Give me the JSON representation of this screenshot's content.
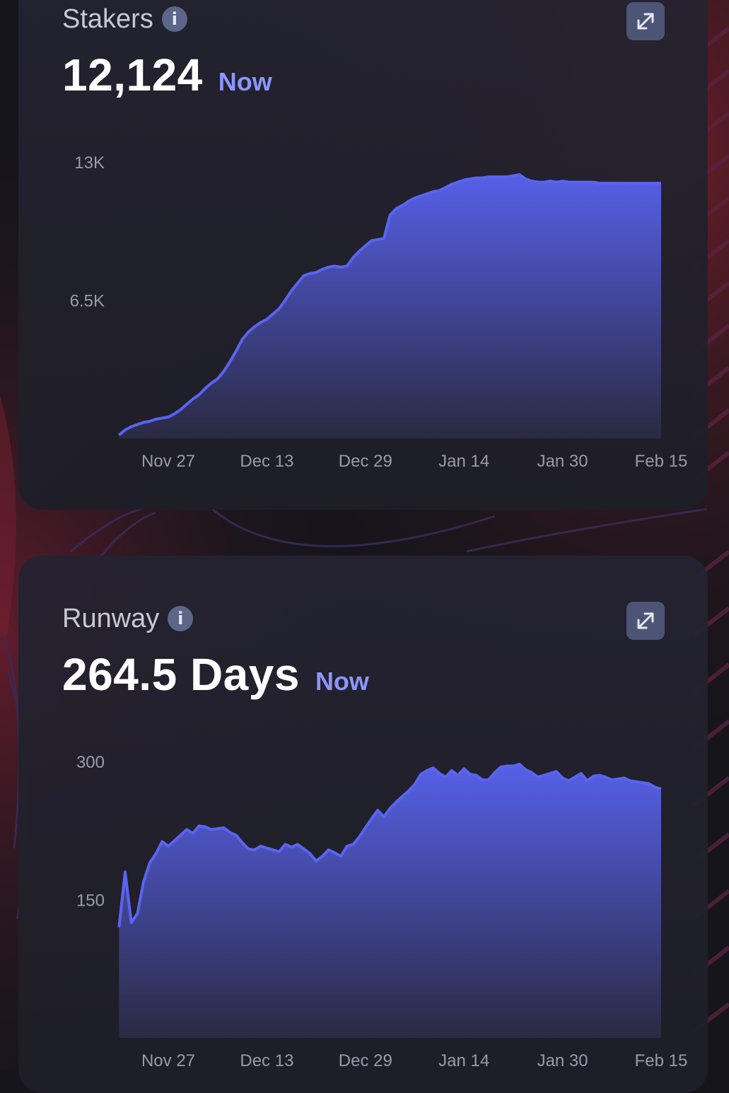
{
  "cards": [
    {
      "title": "Stakers",
      "value": "12,124",
      "now_label": "Now"
    },
    {
      "title": "Runway",
      "value": "264.5 Days",
      "now_label": "Now"
    }
  ],
  "colors": {
    "accent": "#8b95ff",
    "line": "#5a64f0",
    "area_top": "#5660e8",
    "area_bottom": "#2a2a42",
    "card_bg": "#22222e",
    "icon_bg": "#5c6688"
  },
  "icons": {
    "info": "info-icon",
    "expand": "expand-diagonal-icon"
  },
  "chart_data": [
    {
      "type": "area",
      "title": "Stakers",
      "xlabel": "",
      "ylabel": "",
      "x_ticks": [
        "Nov 27",
        "Dec 13",
        "Dec 29",
        "Jan 14",
        "Jan 30",
        "Feb 15"
      ],
      "x_tick_days": [
        0,
        16,
        32,
        48,
        64,
        80
      ],
      "y_ticks": [
        {
          "value": 13000,
          "label": "13K"
        },
        {
          "value": 6500,
          "label": "6.5K"
        }
      ],
      "ylim": [
        0,
        13000
      ],
      "grid": false,
      "series": [
        {
          "x_day": [
            -8,
            -7,
            -6,
            -5,
            -4,
            -3,
            -2,
            -1,
            0,
            1,
            2,
            3,
            4,
            5,
            6,
            7,
            8,
            9,
            10,
            11,
            12,
            13,
            14,
            15,
            16,
            17,
            18,
            19,
            20,
            21,
            22,
            23,
            24,
            25,
            26,
            27,
            28,
            29,
            30,
            31,
            32,
            33,
            34,
            35,
            36,
            37,
            38,
            39,
            40,
            41,
            42,
            43,
            44,
            45,
            46,
            47,
            48,
            49,
            50,
            51,
            52,
            53,
            54,
            55,
            56,
            57,
            58,
            59,
            60,
            61,
            62,
            63,
            64,
            65,
            66,
            67,
            68,
            69,
            70,
            71,
            72,
            73,
            74,
            75,
            76,
            77,
            78,
            79,
            80
          ],
          "values": [
            150,
            400,
            550,
            650,
            750,
            800,
            900,
            950,
            1000,
            1150,
            1350,
            1600,
            1850,
            2050,
            2350,
            2600,
            2800,
            3150,
            3600,
            4100,
            4650,
            5000,
            5250,
            5450,
            5600,
            5850,
            6100,
            6500,
            6950,
            7300,
            7650,
            7750,
            7800,
            7950,
            8050,
            8100,
            8050,
            8100,
            8500,
            8800,
            9050,
            9300,
            9350,
            9400,
            10500,
            10800,
            10950,
            11150,
            11300,
            11400,
            11500,
            11600,
            11650,
            11800,
            11950,
            12050,
            12150,
            12200,
            12250,
            12250,
            12300,
            12300,
            12300,
            12300,
            12350,
            12400,
            12200,
            12100,
            12050,
            12050,
            12100,
            12050,
            12100,
            12050,
            12050,
            12050,
            12050,
            12050,
            12000,
            12000,
            12000,
            12000,
            12000,
            12000,
            12000,
            12000,
            12000,
            12000,
            12000
          ]
        }
      ]
    },
    {
      "type": "area",
      "title": "Runway",
      "xlabel": "",
      "ylabel": "",
      "x_ticks": [
        "Nov 27",
        "Dec 13",
        "Dec 29",
        "Jan 14",
        "Jan 30",
        "Feb 15"
      ],
      "x_tick_days": [
        0,
        16,
        32,
        48,
        64,
        80
      ],
      "y_ticks": [
        {
          "value": 300,
          "label": "300"
        },
        {
          "value": 150,
          "label": "150"
        }
      ],
      "ylim": [
        0,
        300
      ],
      "grid": false,
      "series": [
        {
          "x_day": [
            -8,
            -7,
            -6,
            -5,
            -4,
            -3,
            -2,
            -1,
            0,
            1,
            2,
            3,
            4,
            5,
            6,
            7,
            8,
            9,
            10,
            11,
            12,
            13,
            14,
            15,
            16,
            17,
            18,
            19,
            20,
            21,
            22,
            23,
            24,
            25,
            26,
            27,
            28,
            29,
            30,
            31,
            32,
            33,
            34,
            35,
            36,
            37,
            38,
            39,
            40,
            41,
            42,
            43,
            44,
            45,
            46,
            47,
            48,
            49,
            50,
            51,
            52,
            53,
            54,
            55,
            56,
            57,
            58,
            59,
            60,
            61,
            62,
            63,
            64,
            65,
            66,
            67,
            68,
            69,
            70,
            71,
            72,
            73,
            74,
            75,
            76,
            77,
            78,
            79,
            80
          ],
          "values": [
            120,
            180,
            125,
            135,
            170,
            190,
            200,
            213,
            208,
            214,
            220,
            226,
            222,
            230,
            229,
            226,
            227,
            228,
            223,
            220,
            212,
            205,
            204,
            208,
            206,
            204,
            202,
            210,
            207,
            210,
            205,
            200,
            192,
            197,
            204,
            201,
            197,
            208,
            210,
            218,
            228,
            238,
            247,
            240,
            249,
            256,
            262,
            268,
            275,
            286,
            290,
            293,
            287,
            283,
            290,
            285,
            292,
            286,
            285,
            280,
            280,
            288,
            294,
            295,
            295,
            297,
            291,
            288,
            283,
            285,
            287,
            289,
            282,
            279,
            283,
            287,
            279,
            284,
            285,
            283,
            280,
            281,
            282,
            279,
            278,
            277,
            276,
            272,
            270
          ]
        }
      ]
    }
  ]
}
